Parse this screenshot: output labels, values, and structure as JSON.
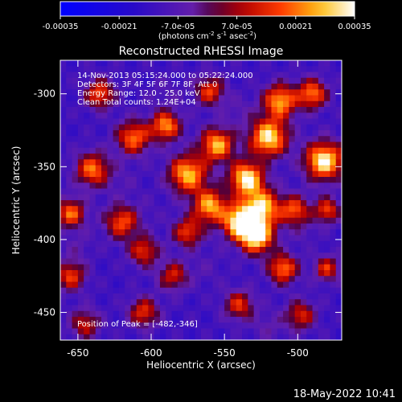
{
  "chart_data": {
    "type": "heatmap",
    "title": "Reconstructed RHESSI Image",
    "xlabel": "Heliocentric X (arcsec)",
    "ylabel": "Heliocentric Y (arcsec)",
    "xlim": [
      -662,
      -470
    ],
    "ylim": [
      -469,
      -277
    ],
    "x_ticks": [
      -650,
      -600,
      -550,
      -500
    ],
    "y_ticks": [
      -300,
      -350,
      -400,
      -450
    ],
    "colorbar": {
      "ticks": [
        "-0.00035",
        "-0.00021",
        "-7.0e-05",
        "7.0e-05",
        "0.00021",
        "0.00035"
      ],
      "range": [
        -0.00035,
        0.00035
      ],
      "unit_main": "(photons cm",
      "unit_sup1": "-2",
      "unit_mid1": " s",
      "unit_sup2": "-1",
      "unit_mid2": " asec",
      "unit_sup3": "-2",
      "unit_end": ")"
    },
    "annotations": [
      "14-Nov-2013 05:15:24.000 to 05:22:24.000",
      "Detectors: 3F 4F 5F 6F 7F 8F, Att 0",
      "Energy Range: 12.0 - 25.0 keV",
      "Clean     Total counts: 1.24E+04"
    ],
    "peak_label": "Position of Peak = [-482,-346]",
    "peak_position": [
      -482,
      -346
    ],
    "blobs": [
      {
        "x": -520,
        "y": -330,
        "v": 0.00033,
        "r": 9
      },
      {
        "x": -512,
        "y": -305,
        "v": 0.00026,
        "r": 8
      },
      {
        "x": -490,
        "y": -300,
        "v": 0.00022,
        "r": 7
      },
      {
        "x": -482,
        "y": -346,
        "v": 0.00035,
        "r": 9
      },
      {
        "x": -535,
        "y": -358,
        "v": 0.00034,
        "r": 8
      },
      {
        "x": -525,
        "y": -378,
        "v": 0.0003,
        "r": 9
      },
      {
        "x": -540,
        "y": -388,
        "v": 0.00032,
        "r": 8
      },
      {
        "x": -528,
        "y": -398,
        "v": 0.00034,
        "r": 8
      },
      {
        "x": -555,
        "y": -335,
        "v": 0.00027,
        "r": 8
      },
      {
        "x": -575,
        "y": -355,
        "v": 0.00028,
        "r": 9
      },
      {
        "x": -560,
        "y": -377,
        "v": 0.00026,
        "r": 8
      },
      {
        "x": -590,
        "y": -322,
        "v": 0.00024,
        "r": 7
      },
      {
        "x": -612,
        "y": -330,
        "v": 0.00021,
        "r": 8
      },
      {
        "x": -640,
        "y": -352,
        "v": 0.00021,
        "r": 8
      },
      {
        "x": -655,
        "y": -382,
        "v": 0.0002,
        "r": 7
      },
      {
        "x": -655,
        "y": -425,
        "v": 0.00016,
        "r": 7
      },
      {
        "x": -620,
        "y": -388,
        "v": 0.00018,
        "r": 8
      },
      {
        "x": -605,
        "y": -408,
        "v": 0.00015,
        "r": 7
      },
      {
        "x": -575,
        "y": -395,
        "v": 0.00016,
        "r": 7
      },
      {
        "x": -635,
        "y": -300,
        "v": 0.00018,
        "r": 7
      },
      {
        "x": -560,
        "y": -298,
        "v": 0.00016,
        "r": 7
      },
      {
        "x": -605,
        "y": -450,
        "v": 0.00015,
        "r": 7
      },
      {
        "x": -540,
        "y": -445,
        "v": 0.00014,
        "r": 7
      },
      {
        "x": -510,
        "y": -420,
        "v": 0.00022,
        "r": 7
      },
      {
        "x": -498,
        "y": -452,
        "v": 0.00013,
        "r": 7
      },
      {
        "x": -480,
        "y": -380,
        "v": 0.00017,
        "r": 6
      },
      {
        "x": -480,
        "y": -420,
        "v": 0.00014,
        "r": 6
      },
      {
        "x": -502,
        "y": -380,
        "v": 0.00018,
        "r": 7
      },
      {
        "x": -585,
        "y": -425,
        "v": 0.00012,
        "r": 7
      },
      {
        "x": -645,
        "y": -458,
        "v": 0.00011,
        "r": 7
      },
      {
        "x": -620,
        "y": -360,
        "v": -8e-05,
        "r": 9
      },
      {
        "x": -600,
        "y": -380,
        "v": -0.0001,
        "r": 8
      },
      {
        "x": -562,
        "y": -420,
        "v": -8e-05,
        "r": 9
      },
      {
        "x": -590,
        "y": -300,
        "v": -7e-05,
        "r": 8
      },
      {
        "x": -495,
        "y": -395,
        "v": -7e-05,
        "r": 6
      },
      {
        "x": -540,
        "y": -312,
        "v": -6e-05,
        "r": 7
      },
      {
        "x": -650,
        "y": -405,
        "v": -6e-05,
        "r": 7
      },
      {
        "x": -520,
        "y": -460,
        "v": -5e-05,
        "r": 8
      }
    ]
  },
  "footer": {
    "date": "18-May-2022 10:41"
  }
}
